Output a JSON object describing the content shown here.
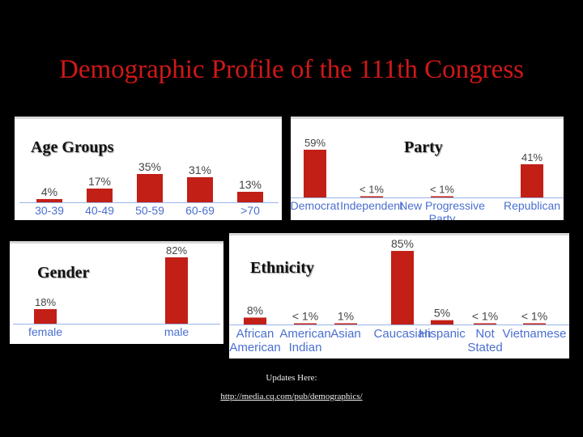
{
  "title": "Demographic Profile of the 111th Congress",
  "footer": {
    "label": "Updates Here:",
    "link": "http://media.cq.com/pub/demographics/"
  },
  "colors": {
    "bar": "#c21f16",
    "category": "#4a6fd0",
    "value": "#444444",
    "baseline": "#9ab4e6"
  },
  "chart_data": [
    {
      "type": "bar",
      "title": "Age Groups",
      "categories": [
        [
          "30-39"
        ],
        [
          "40-49"
        ],
        [
          "50-59"
        ],
        [
          "60-69"
        ],
        [
          ">70"
        ]
      ],
      "values": [
        4,
        17,
        35,
        31,
        13
      ],
      "labels": [
        "4%",
        "17%",
        "35%",
        "31%",
        "13%"
      ]
    },
    {
      "type": "bar",
      "title": "Party",
      "categories": [
        [
          "Democrat"
        ],
        [
          "Independent"
        ],
        [
          "New Progressive",
          "Party"
        ],
        [
          "Republican"
        ]
      ],
      "values": [
        59,
        0.5,
        0.5,
        41
      ],
      "labels": [
        "59%",
        "< 1%",
        "< 1%",
        "41%"
      ]
    },
    {
      "type": "bar",
      "title": "Gender",
      "categories": [
        [
          "female"
        ],
        [
          "male"
        ]
      ],
      "values": [
        18,
        82
      ],
      "labels": [
        "18%",
        "82%"
      ]
    },
    {
      "type": "bar",
      "title": "Ethnicity",
      "categories": [
        [
          "African",
          "American"
        ],
        [
          "American",
          "Indian"
        ],
        [
          "Asian"
        ],
        [
          "Caucasian"
        ],
        [
          "Hispanic"
        ],
        [
          "Not",
          "Stated"
        ],
        [
          "Vietnamese"
        ]
      ],
      "values": [
        8,
        0.5,
        1,
        85,
        5,
        0.5,
        0.5
      ],
      "labels": [
        "8%",
        "< 1%",
        "1%",
        "85%",
        "5%",
        "< 1%",
        "< 1%"
      ]
    }
  ]
}
